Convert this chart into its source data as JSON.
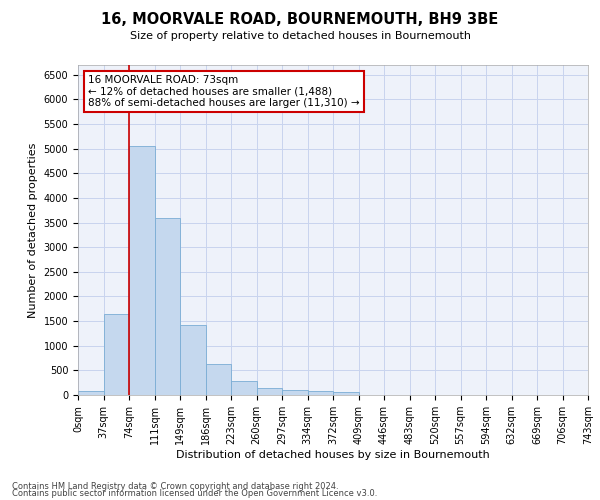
{
  "title": "16, MOORVALE ROAD, BOURNEMOUTH, BH9 3BE",
  "subtitle": "Size of property relative to detached houses in Bournemouth",
  "xlabel": "Distribution of detached houses by size in Bournemouth",
  "ylabel": "Number of detached properties",
  "bar_values": [
    75,
    1650,
    5060,
    3600,
    1420,
    620,
    290,
    150,
    105,
    80,
    65,
    0,
    0,
    0,
    0,
    0,
    0,
    0,
    0,
    0
  ],
  "bar_labels": [
    "0sqm",
    "37sqm",
    "74sqm",
    "111sqm",
    "149sqm",
    "186sqm",
    "223sqm",
    "260sqm",
    "297sqm",
    "334sqm",
    "372sqm",
    "409sqm",
    "446sqm",
    "483sqm",
    "520sqm",
    "557sqm",
    "594sqm",
    "632sqm",
    "669sqm",
    "706sqm",
    "743sqm"
  ],
  "bar_color": "#c5d8ee",
  "bar_edge_color": "#7aadd4",
  "annotation_box_text": "16 MOORVALE ROAD: 73sqm\n← 12% of detached houses are smaller (1,488)\n88% of semi-detached houses are larger (11,310) →",
  "annotation_box_color": "#cc0000",
  "vline_color": "#cc0000",
  "vline_x": 2.0,
  "ylim": [
    0,
    6700
  ],
  "yticks": [
    0,
    500,
    1000,
    1500,
    2000,
    2500,
    3000,
    3500,
    4000,
    4500,
    5000,
    5500,
    6000,
    6500
  ],
  "footer1": "Contains HM Land Registry data © Crown copyright and database right 2024.",
  "footer2": "Contains public sector information licensed under the Open Government Licence v3.0.",
  "bg_color": "#eef2fa",
  "grid_color": "#c8d4ee",
  "title_fontsize": 10.5,
  "subtitle_fontsize": 8,
  "ylabel_fontsize": 8,
  "xlabel_fontsize": 8,
  "tick_fontsize": 7,
  "footer_fontsize": 6,
  "ann_fontsize": 7.5
}
